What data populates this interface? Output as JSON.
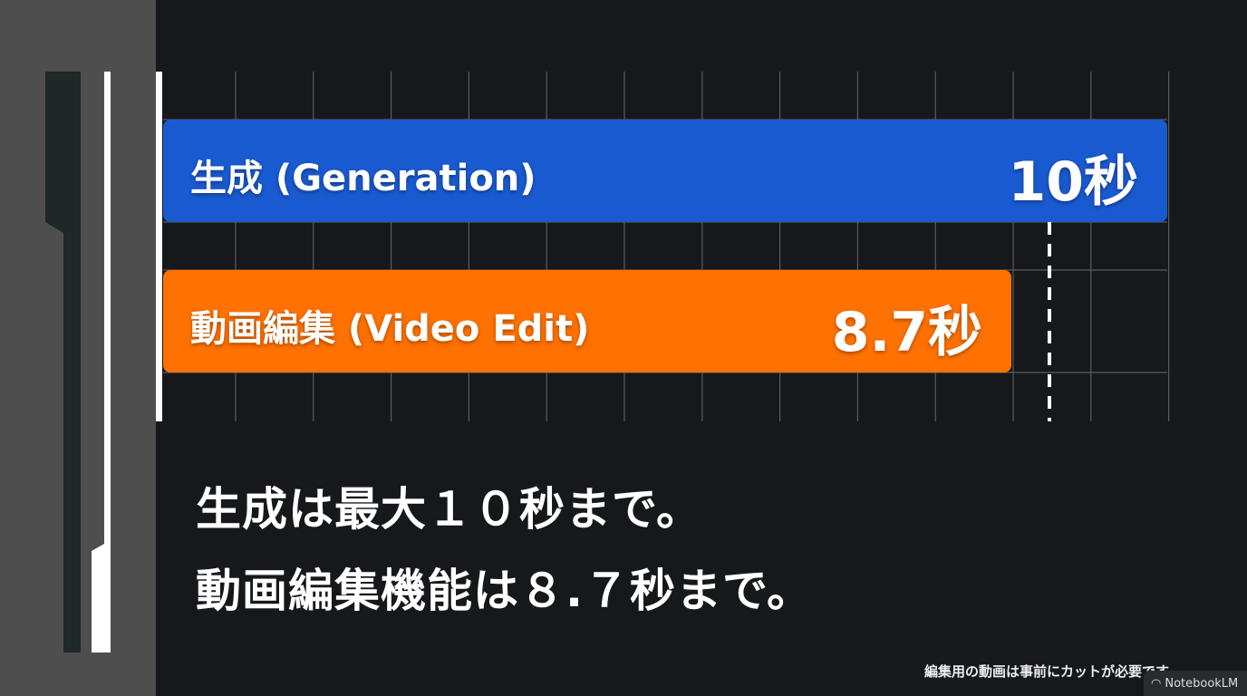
{
  "chart_data": {
    "type": "bar",
    "orientation": "horizontal",
    "categories": [
      "生成 (Generation)",
      "動画編集 (Video Edit)"
    ],
    "values": [
      10,
      8.7
    ],
    "value_labels": [
      "10秒",
      "8.7秒"
    ],
    "unit": "秒",
    "xlim": [
      0,
      10
    ],
    "grid": true,
    "colors": [
      "#1a5ad0",
      "#ff7100"
    ],
    "reference_line": {
      "value": 10,
      "style": "dashed"
    }
  },
  "captions": {
    "line1": "生成は最大１０秒まで。",
    "line2": "動画編集機能は８.７秒まで。"
  },
  "footnote": "編集用の動画は事前にカットが必要です。",
  "badge": {
    "icon": "notebooklm-icon",
    "label": "NotebookLM"
  }
}
